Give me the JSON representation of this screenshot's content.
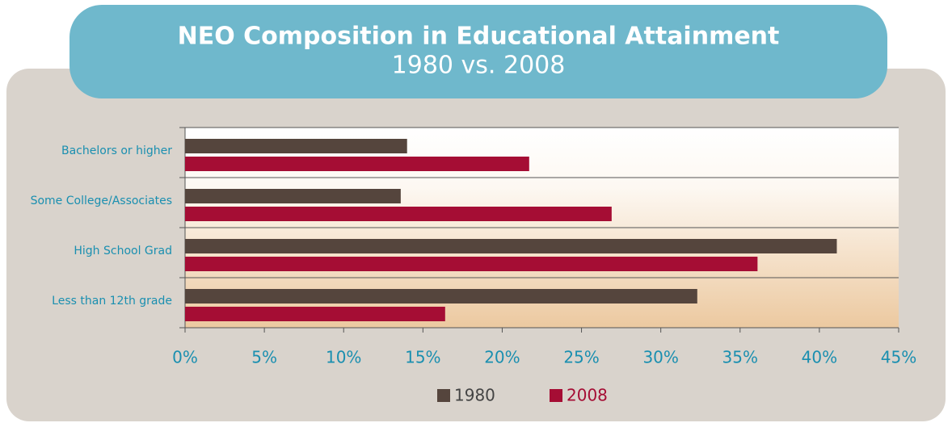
{
  "chart_data": {
    "type": "bar",
    "orientation": "horizontal",
    "title": "NEO Composition in Educational Attainment",
    "subtitle": "1980 vs. 2008",
    "categories": [
      "Bachelors or higher",
      "Some College/Associates",
      "High School Grad",
      "Less than 12th grade"
    ],
    "series": [
      {
        "name": "1980",
        "color": "#55453d",
        "values": [
          14.0,
          13.6,
          41.1,
          32.3
        ]
      },
      {
        "name": "2008",
        "color": "#a50d34",
        "values": [
          21.7,
          26.9,
          36.1,
          16.4
        ]
      }
    ],
    "xlim": [
      0,
      45
    ],
    "xticks": [
      {
        "value": 0,
        "label": "0%"
      },
      {
        "value": 5,
        "label": "5%"
      },
      {
        "value": 10,
        "label": "10%"
      },
      {
        "value": 15,
        "label": "15%"
      },
      {
        "value": 20,
        "label": "20%"
      },
      {
        "value": 25,
        "label": "25%"
      },
      {
        "value": 30,
        "label": "30%"
      },
      {
        "value": 35,
        "label": "35%"
      },
      {
        "value": 40,
        "label": "40%"
      },
      {
        "value": 45,
        "label": "45%"
      }
    ],
    "legend": "bottom"
  }
}
